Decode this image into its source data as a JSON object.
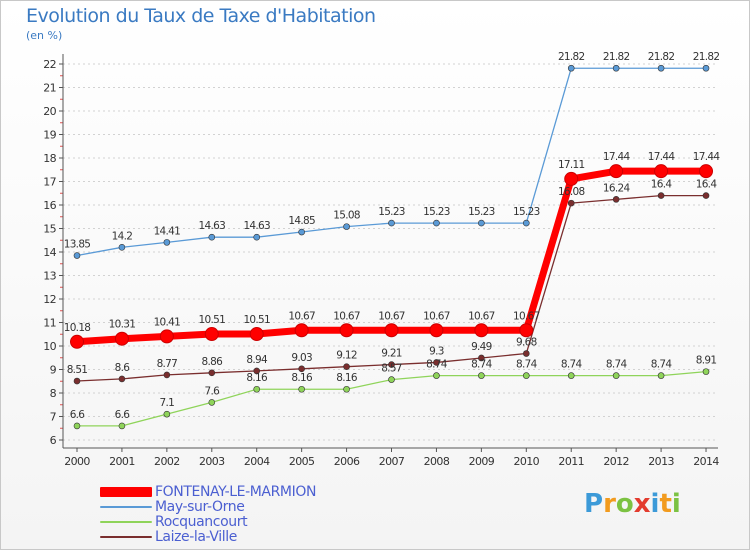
{
  "chart_data": {
    "type": "line",
    "title": "Evolution du Taux de Taxe d'Habitation",
    "unit_label": "(en %)",
    "x": [
      "2000",
      "2001",
      "2002",
      "2003",
      "2004",
      "2005",
      "2006",
      "2007",
      "2008",
      "2009",
      "2010",
      "2011",
      "2012",
      "2013",
      "2014"
    ],
    "ylim": [
      6,
      22
    ],
    "yticks": [
      "6",
      "7",
      "8",
      "9",
      "10",
      "11",
      "12",
      "13",
      "14",
      "15",
      "16",
      "17",
      "18",
      "19",
      "20",
      "21",
      "22"
    ],
    "grid": "horizontal dashed",
    "legend_position": "bottom-left",
    "series": [
      {
        "name": "FONTENAY-LE-MARMION",
        "color": "#ff0000",
        "values": [
          10.18,
          10.31,
          10.41,
          10.51,
          10.51,
          10.67,
          10.67,
          10.67,
          10.67,
          10.67,
          10.67,
          17.11,
          17.44,
          17.44,
          17.44
        ],
        "labels": [
          "10.18",
          "10.31",
          "10.41",
          "10.51",
          "10.51",
          "10.67",
          "10.67",
          "10.67",
          "10.67",
          "10.67",
          "10.67",
          "17.11",
          "17.44",
          "17.44",
          "17.44"
        ]
      },
      {
        "name": "May-sur-Orne",
        "color": "#5a9ad6",
        "values": [
          13.85,
          14.2,
          14.41,
          14.63,
          14.63,
          14.85,
          15.08,
          15.23,
          15.23,
          15.23,
          15.23,
          21.82,
          21.82,
          21.82,
          21.82
        ],
        "labels": [
          "13.85",
          "14.2",
          "14.41",
          "14.63",
          "14.63",
          "14.85",
          "15.08",
          "15.23",
          "15.23",
          "15.23",
          "15.23",
          "21.82",
          "21.82",
          "21.82",
          "21.82"
        ]
      },
      {
        "name": "Rocquancourt",
        "color": "#8fd45a",
        "values": [
          6.6,
          6.6,
          7.1,
          7.6,
          8.16,
          8.16,
          8.16,
          8.57,
          8.74,
          8.74,
          8.74,
          8.74,
          8.74,
          8.74,
          8.91
        ],
        "labels": [
          "6.6",
          "6.6",
          "7.1",
          "7.6",
          "8.16",
          "8.16",
          "8.16",
          "8.57",
          "8.74",
          "8.74",
          "8.74",
          "8.74",
          "8.74",
          "8.74",
          "8.91"
        ]
      },
      {
        "name": "Laize-la-Ville",
        "color": "#7a2e2e",
        "values": [
          8.51,
          8.6,
          8.77,
          8.86,
          8.94,
          9.03,
          9.12,
          9.21,
          9.3,
          9.49,
          9.68,
          16.08,
          16.24,
          16.4,
          16.4
        ],
        "labels": [
          "8.51",
          "8.6",
          "8.77",
          "8.86",
          "8.94",
          "9.03",
          "9.12",
          "9.21",
          "9.3",
          "9.49",
          "9.68",
          "16.08",
          "16.24",
          "16.4",
          "16.4"
        ]
      }
    ]
  },
  "logo": {
    "letters": [
      "P",
      "r",
      "o",
      "x",
      "i",
      "t",
      "i"
    ],
    "colors": [
      "#3c9ad8",
      "#f29b1e",
      "#7cc242",
      "#e33b2e",
      "#3c9ad8",
      "#f29b1e",
      "#7cc242"
    ]
  }
}
